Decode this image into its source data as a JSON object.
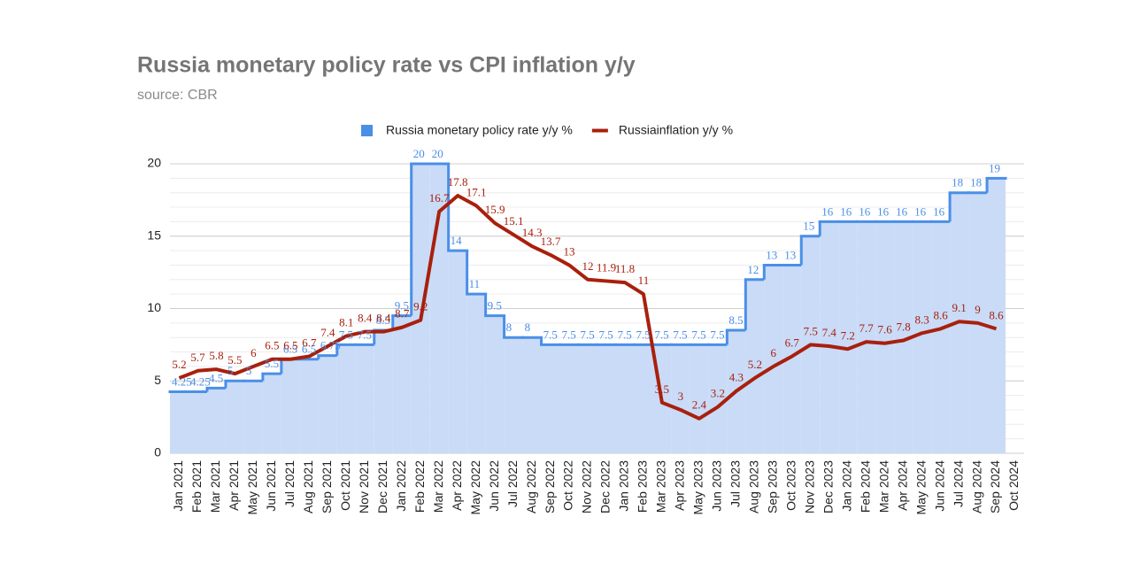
{
  "chart_data": {
    "type": "step-area-line",
    "title": "Russia monetary policy rate vs CPI inflation y/y",
    "subtitle": "source: CBR",
    "categories": [
      "Jan 2021",
      "Feb 2021",
      "Mar 2021",
      "Apr 2021",
      "May 2021",
      "Jun 2021",
      "Jul 2021",
      "Aug 2021",
      "Sep 2021",
      "Oct 2021",
      "Nov 2021",
      "Dec 2021",
      "Jan 2022",
      "Feb 2022",
      "Mar 2022",
      "Apr 2022",
      "May 2022",
      "Jun 2022",
      "Jul 2022",
      "Aug 2022",
      "Sep 2022",
      "Oct 2022",
      "Nov 2022",
      "Dec 2022",
      "Jan 2023",
      "Feb 2023",
      "Mar 2023",
      "Apr 2023",
      "May 2023",
      "Jun 2023",
      "Jul 2023",
      "Aug 2023",
      "Sep 2023",
      "Oct 2023",
      "Nov 2023",
      "Dec 2023",
      "Jan 2024",
      "Feb 2024",
      "Mar 2024",
      "Apr 2024",
      "May 2024",
      "Jun 2024",
      "Jul 2024",
      "Aug 2024",
      "Sep 2024",
      "Oct 2024"
    ],
    "series": [
      {
        "name": "Russia monetary policy rate y/y %",
        "color": "#4a8fe7",
        "fill": "#c9dbf7",
        "values": [
          4.25,
          4.25,
          4.5,
          5,
          5,
          5.5,
          6.5,
          6.5,
          6.75,
          7.5,
          7.5,
          8.5,
          9.5,
          20,
          20,
          14,
          11,
          9.5,
          8,
          8,
          7.5,
          7.5,
          7.5,
          7.5,
          7.5,
          7.5,
          7.5,
          7.5,
          7.5,
          7.5,
          8.5,
          12,
          13,
          13,
          15,
          16,
          16,
          16,
          16,
          16,
          16,
          16,
          18,
          18,
          19,
          null
        ]
      },
      {
        "name": "Russiainflation y/y %",
        "color": "#a8200d",
        "values": [
          5.2,
          5.7,
          5.8,
          5.5,
          6,
          6.5,
          6.5,
          6.7,
          7.4,
          8.1,
          8.4,
          8.4,
          8.7,
          9.2,
          16.7,
          17.8,
          17.1,
          15.9,
          15.1,
          14.3,
          13.7,
          13,
          12,
          11.9,
          11.8,
          11,
          3.5,
          3,
          2.4,
          3.2,
          4.3,
          5.2,
          6,
          6.7,
          7.5,
          7.4,
          7.2,
          7.7,
          7.6,
          7.8,
          8.3,
          8.6,
          9.1,
          9,
          8.6,
          null
        ]
      }
    ],
    "ylim": [
      0,
      20
    ],
    "yticks": [
      0,
      5,
      10,
      15,
      20
    ],
    "grid": true,
    "legend": "top"
  }
}
